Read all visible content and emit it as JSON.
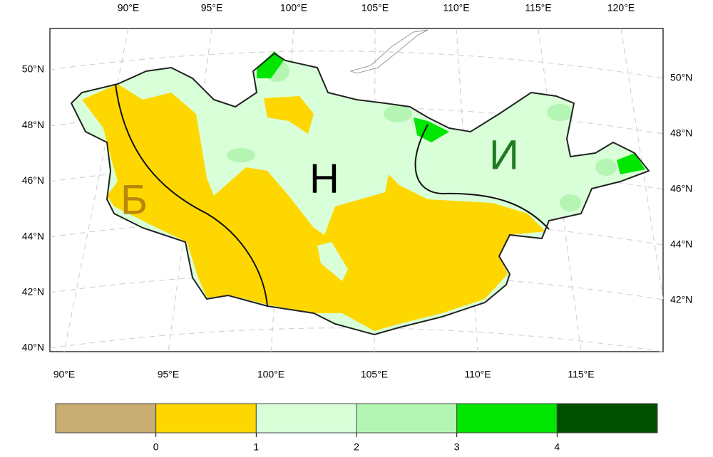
{
  "map": {
    "top_lon_labels": [
      "90°E",
      "95°E",
      "100°E",
      "105°E",
      "110°E",
      "115°E",
      "120°E"
    ],
    "bottom_lon_labels": [
      "90°E",
      "95°E",
      "100°E",
      "105°E",
      "110°E",
      "115°E"
    ],
    "left_lat_labels": [
      "50°N",
      "48°N",
      "46°N",
      "44°N",
      "42°N",
      "40°N"
    ],
    "right_lat_labels": [
      "50°N",
      "48°N",
      "46°N",
      "44°N",
      "42°N"
    ],
    "region_labels": [
      {
        "text": "Б",
        "color": "#b8860b"
      },
      {
        "text": "Н",
        "color": "#000000"
      },
      {
        "text": "И",
        "color": "#1e7a1e"
      }
    ],
    "colorbar": {
      "colors": [
        "#c8ad72",
        "#ffd700",
        "#d8ffd8",
        "#b4f5b4",
        "#00e600",
        "#005000"
      ],
      "ticks": [
        0,
        1,
        2,
        3,
        4
      ]
    }
  }
}
